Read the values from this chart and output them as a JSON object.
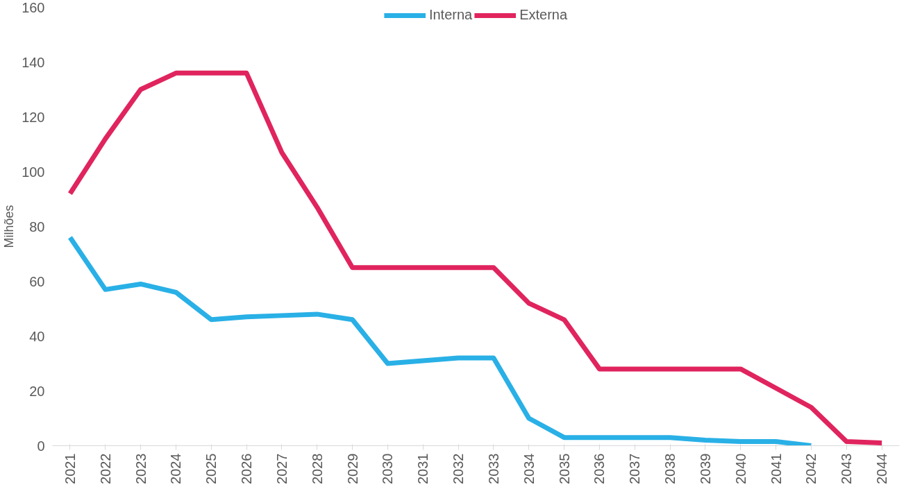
{
  "chart_data": {
    "type": "line",
    "ylabel": "Milhões",
    "categories": [
      "2021",
      "2022",
      "2023",
      "2024",
      "2025",
      "2026",
      "2027",
      "2028",
      "2029",
      "2030",
      "2031",
      "2032",
      "2033",
      "2034",
      "2035",
      "2036",
      "2037",
      "2038",
      "2039",
      "2040",
      "2041",
      "2042",
      "2043",
      "2044"
    ],
    "series": [
      {
        "name": "Interna",
        "color": "#29b0e6",
        "values": [
          76,
          57,
          59,
          56,
          46,
          47,
          47.5,
          48,
          46,
          30,
          31,
          32,
          32,
          10,
          3,
          3,
          3,
          3,
          2,
          1.5,
          1.5,
          0,
          null,
          null
        ]
      },
      {
        "name": "Externa",
        "color": "#e0245e",
        "values": [
          92,
          112,
          130,
          136,
          136,
          136,
          107,
          87,
          65,
          65,
          65,
          65,
          65,
          52,
          46,
          28,
          28,
          28,
          28,
          28,
          21,
          14,
          1.5,
          1
        ]
      }
    ],
    "ylim": [
      0,
      160
    ],
    "yticks": [
      0,
      20,
      40,
      60,
      80,
      100,
      120,
      140,
      160
    ],
    "grid": false,
    "legend": "top",
    "marker": "none",
    "line_style": "solid"
  }
}
